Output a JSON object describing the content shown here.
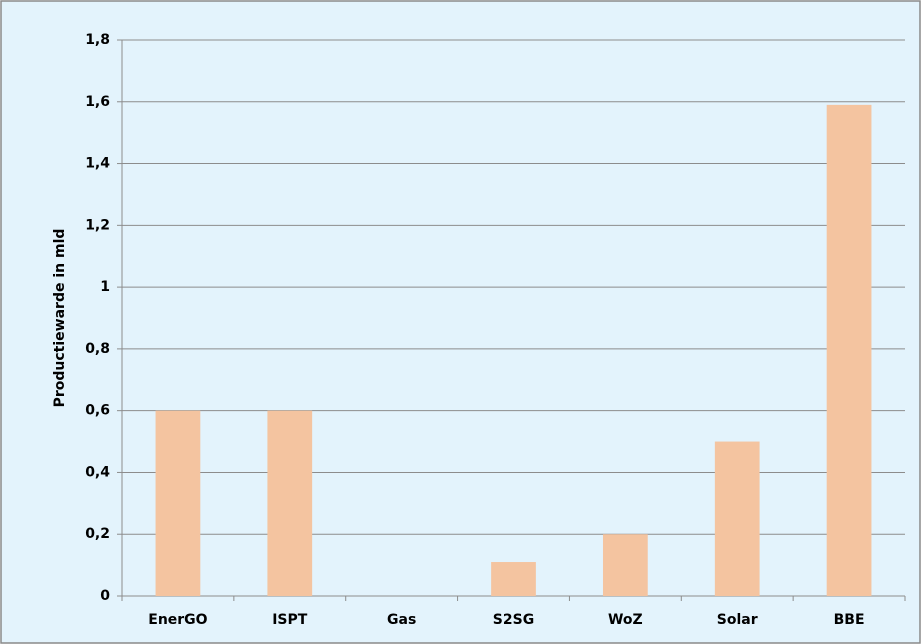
{
  "chart_data": {
    "type": "bar",
    "y_label": "Productiewarde in mld",
    "categories": [
      "EnerGO",
      "ISPT",
      "Gas",
      "S2SG",
      "WoZ",
      "Solar",
      "BBE"
    ],
    "values": [
      0.6,
      0.6,
      0,
      0.11,
      0.2,
      0.5,
      1.59
    ],
    "color": "#f4c4a0",
    "ylim": [
      0,
      1.8
    ],
    "yticks": [
      0,
      {
        "value": 0.2,
        "label": "0,2"
      },
      {
        "value": 0.4,
        "label": "0,4"
      },
      {
        "value": 0.6,
        "label": "0,6"
      },
      {
        "value": 0.8,
        "label": "0,8"
      },
      1,
      {
        "value": 1.2,
        "label": "1,2"
      },
      {
        "value": 1.4,
        "label": "1,4"
      },
      {
        "value": 1.6,
        "label": "1,6"
      },
      {
        "value": 1.8,
        "label": "1,8"
      }
    ],
    "grid": true
  }
}
